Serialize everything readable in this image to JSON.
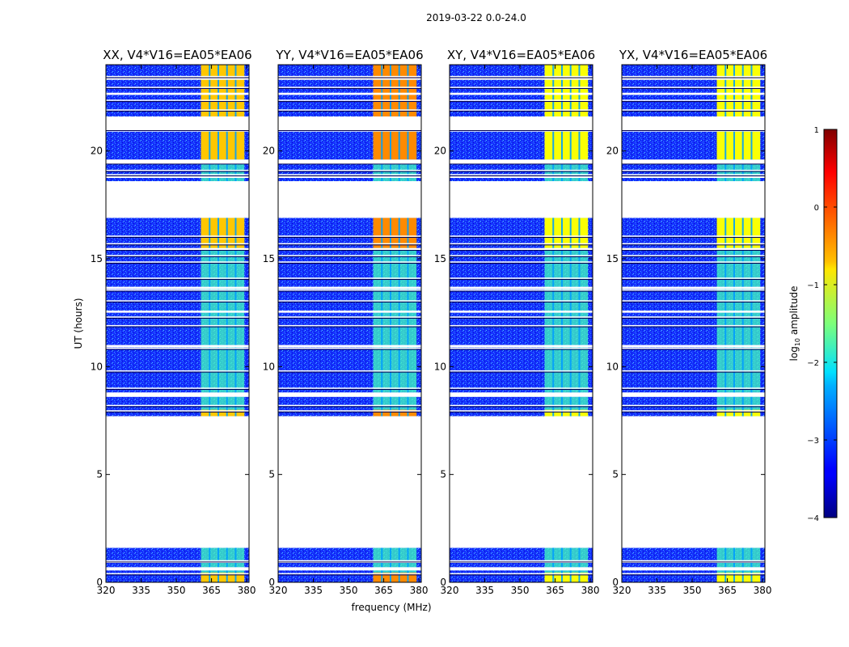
{
  "figure": {
    "suptitle": "2019-03-22 0.0-24.0"
  },
  "chart_data": {
    "type": "heatmap",
    "description_panels": "four dynamic spectra, frequency vs UT time, colour = log10 amplitude",
    "xlabel": "frequency (MHz)",
    "ylabel": "UT (hours)",
    "xlim": [
      320,
      381
    ],
    "ylim": [
      0,
      24
    ],
    "xticks": [
      320,
      335,
      350,
      365,
      380
    ],
    "yticks": [
      0,
      5,
      10,
      15,
      20
    ],
    "colorbar": {
      "label": "log10 amplitude",
      "range": [
        -4,
        1
      ],
      "ticks": [
        1,
        0,
        -1,
        -2,
        -3,
        -4
      ],
      "colormap": "jet"
    },
    "panels": [
      {
        "title": "XX, V4*V16=EA05*EA06",
        "bright_band_level": -0.6
      },
      {
        "title": "YY, V4*V16=EA05*EA06",
        "bright_band_level": -0.3
      },
      {
        "title": "XY, V4*V16=EA05*EA06",
        "bright_band_level": -0.9
      },
      {
        "title": "YX, V4*V16=EA05*EA06",
        "bright_band_level": -0.9
      }
    ],
    "background_level": -3.0,
    "rfi_band_mhz": [
      360.5,
      379.0
    ],
    "data_blocks_ut": [
      [
        0.0,
        1.6
      ],
      [
        7.7,
        8.6
      ],
      [
        8.8,
        10.9
      ],
      [
        11.0,
        13.6
      ],
      [
        13.7,
        16.9
      ],
      [
        18.6,
        19.4
      ],
      [
        19.6,
        20.9
      ],
      [
        21.6,
        24.0
      ]
    ],
    "gaps_ut": [
      [
        0.55,
        0.7
      ],
      [
        0.9,
        1.0
      ],
      [
        1.6,
        7.7
      ],
      [
        8.6,
        8.8
      ],
      [
        10.9,
        11.0
      ],
      [
        12.5,
        12.6
      ],
      [
        13.6,
        13.7
      ],
      [
        15.4,
        15.5
      ],
      [
        16.9,
        18.6
      ],
      [
        18.75,
        18.85
      ],
      [
        19.4,
        19.6
      ],
      [
        20.9,
        21.6
      ],
      [
        22.6,
        22.7
      ],
      [
        23.3,
        23.4
      ]
    ],
    "flagged_lines_ut": [
      0.4,
      1.0,
      7.95,
      8.2,
      9.0,
      9.8,
      10.85,
      11.9,
      12.3,
      13.05,
      13.55,
      14.1,
      14.85,
      15.15,
      15.45,
      15.7,
      16.05,
      18.9,
      19.1,
      19.45,
      21.0,
      21.9,
      22.35,
      22.95,
      23.45
    ],
    "strong_rfi_ut": [
      [
        0.0,
        0.45
      ],
      [
        7.7,
        8.0
      ],
      [
        15.5,
        16.9
      ],
      [
        19.6,
        20.9
      ],
      [
        21.6,
        24.0
      ]
    ]
  }
}
